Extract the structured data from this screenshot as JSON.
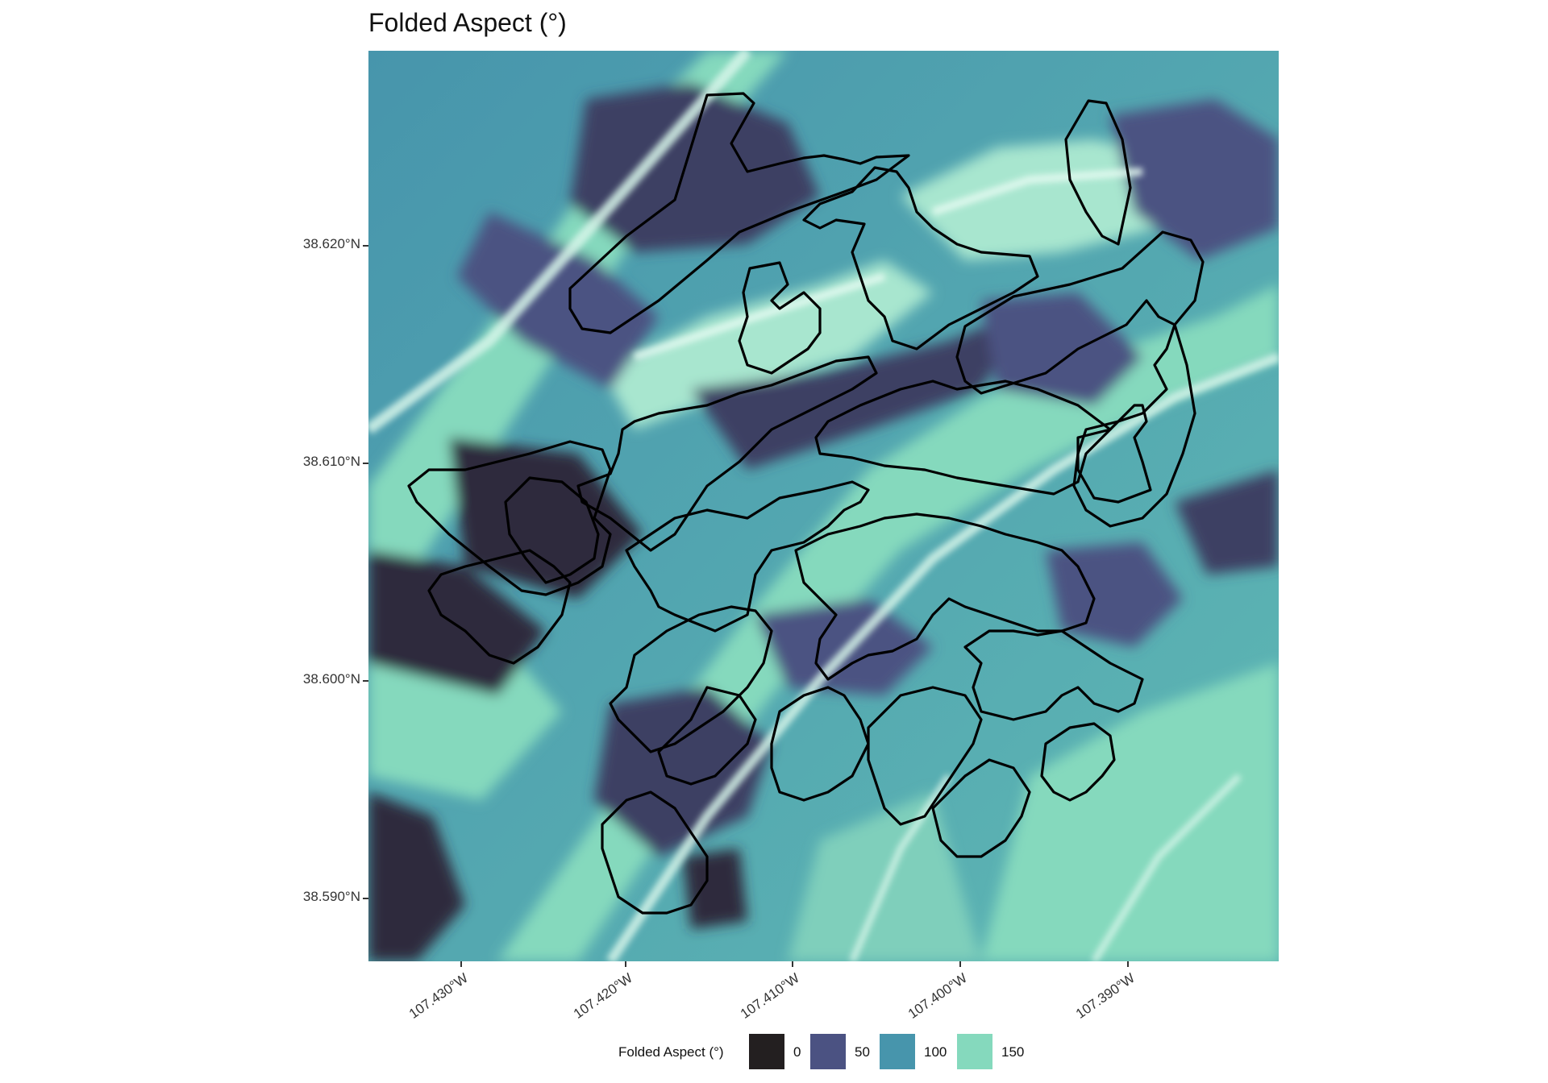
{
  "title": "Folded Aspect (°)",
  "map": {
    "latitude_ticks": [
      "38.620°N",
      "38.610°N",
      "38.600°N",
      "38.590°N"
    ],
    "longitude_ticks": [
      "107.430°W",
      "107.420°W",
      "107.410°W",
      "107.400°W",
      "107.390°W"
    ],
    "raster": "folded aspect shaded relief",
    "overlay": "black polygon outlines"
  },
  "legend": {
    "title": "Folded Aspect (°)",
    "entries": [
      {
        "label": "0",
        "color": "#231f20"
      },
      {
        "label": "50",
        "color": "#4b5282"
      },
      {
        "label": "100",
        "color": "#4795ac"
      },
      {
        "label": "150",
        "color": "#85d9bd"
      }
    ]
  },
  "colors": {
    "outline": "#000000",
    "dark": "#231f20",
    "mid_dark": "#4b5282",
    "mid": "#4795ac",
    "light": "#85d9bd",
    "highlight": "#d8f6ea"
  }
}
